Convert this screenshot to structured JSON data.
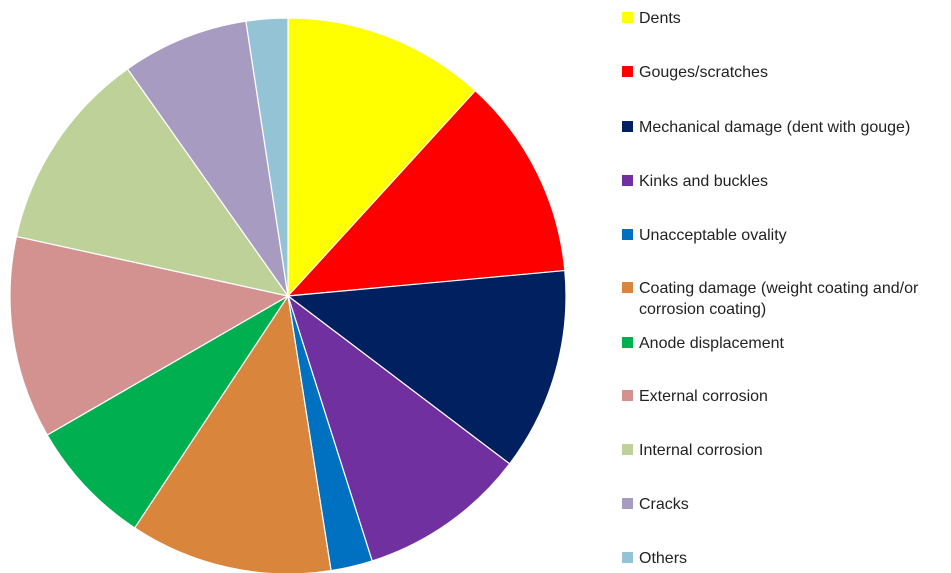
{
  "chart_data": {
    "type": "pie",
    "title": "",
    "start_angle_deg": 0,
    "direction": "clockwise",
    "legend_position": "right",
    "series": [
      {
        "name": "",
        "slices": [
          {
            "label": "Dents",
            "value": 10.7,
            "color": "#ffff00"
          },
          {
            "label": "Gouges/scratches",
            "value": 10.7,
            "color": "#ff0000"
          },
          {
            "label": "Mechanical damage  (dent with gouge)",
            "value": 10.7,
            "color": "#002060"
          },
          {
            "label": "Kinks and buckles",
            "value": 8.9,
            "color": "#7030a0"
          },
          {
            "label": "Unacceptable ovality",
            "value": 2.2,
            "color": "#0070c0"
          },
          {
            "label": "Coating damage  (weight coating and/or corrosion coating)",
            "value": 10.7,
            "color": "#d9853b"
          },
          {
            "label": "Anode displacement",
            "value": 6.7,
            "color": "#00b050"
          },
          {
            "label": "External corrosion",
            "value": 10.7,
            "color": "#d39190"
          },
          {
            "label": "Internal corrosion",
            "value": 10.7,
            "color": "#bdd198"
          },
          {
            "label": "Cracks",
            "value": 6.7,
            "color": "#a79bc1"
          },
          {
            "label": "Others",
            "value": 2.2,
            "color": "#93c3d5"
          }
        ]
      }
    ]
  }
}
